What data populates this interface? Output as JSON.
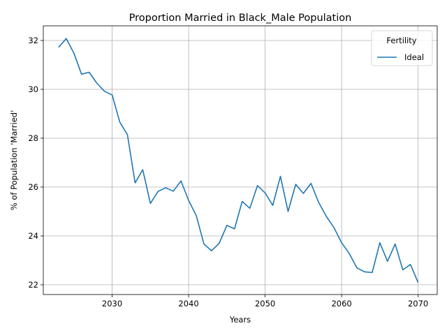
{
  "chart_data": {
    "type": "line",
    "title": "Proportion Married in Black_Male Population",
    "xlabel": "Years",
    "ylabel": "% of Population 'Married'",
    "xlim": [
      2021,
      2072.5
    ],
    "ylim": [
      21.6,
      32.6
    ],
    "xticks": [
      2030,
      2040,
      2050,
      2060,
      2070
    ],
    "yticks": [
      22,
      24,
      26,
      28,
      30,
      32
    ],
    "grid": true,
    "legend": {
      "title": "Fertility",
      "placement": "top-right"
    },
    "series": [
      {
        "name": "Ideal",
        "color": "#1f77b4",
        "x": [
          2023,
          2024,
          2025,
          2026,
          2027,
          2028,
          2029,
          2030,
          2031,
          2032,
          2033,
          2034,
          2035,
          2036,
          2037,
          2038,
          2039,
          2040,
          2041,
          2042,
          2043,
          2044,
          2045,
          2046,
          2047,
          2048,
          2049,
          2050,
          2051,
          2052,
          2053,
          2054,
          2055,
          2056,
          2057,
          2058,
          2059,
          2060,
          2061,
          2062,
          2063,
          2064,
          2065,
          2066,
          2067,
          2068,
          2069,
          2070
        ],
        "values": [
          31.72,
          32.08,
          31.48,
          30.62,
          30.7,
          30.25,
          29.92,
          29.77,
          28.66,
          28.14,
          26.17,
          26.71,
          25.33,
          25.82,
          25.97,
          25.83,
          26.25,
          25.45,
          24.83,
          23.67,
          23.39,
          23.7,
          24.43,
          24.29,
          25.41,
          25.13,
          26.06,
          25.76,
          25.25,
          26.44,
          25.0,
          26.11,
          25.74,
          26.15,
          25.37,
          24.8,
          24.34,
          23.72,
          23.28,
          22.69,
          22.53,
          22.5,
          23.72,
          22.96,
          23.67,
          22.61,
          22.83,
          22.09
        ]
      }
    ]
  }
}
